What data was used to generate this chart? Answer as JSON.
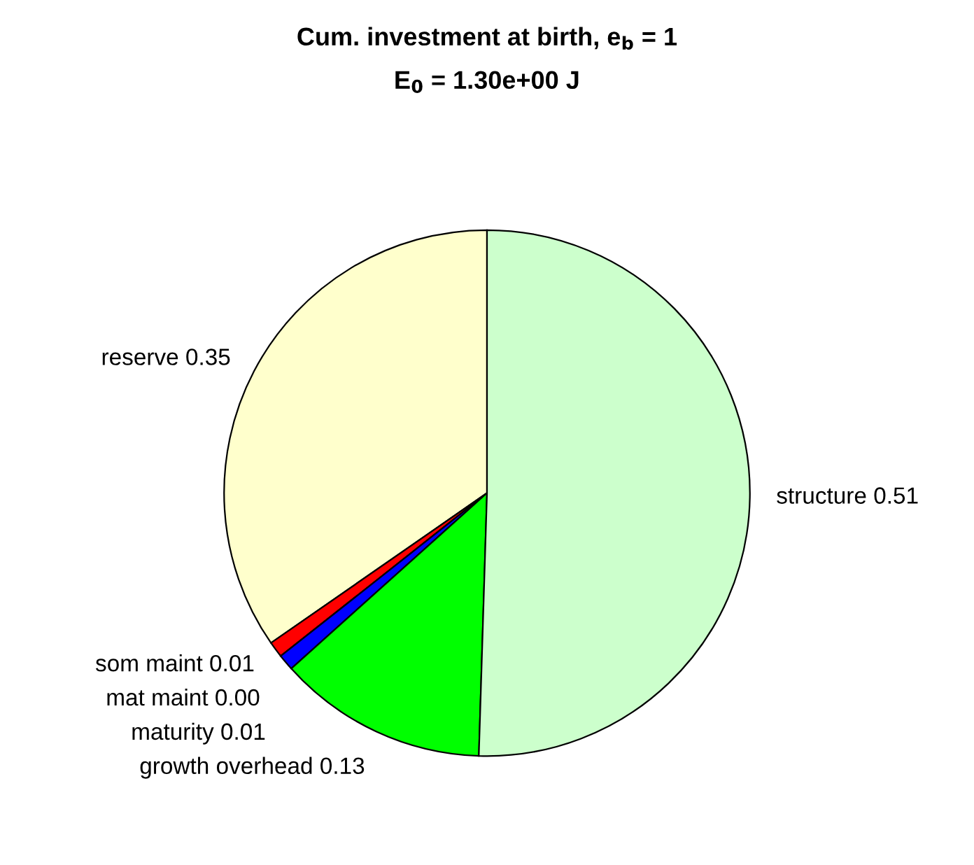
{
  "chart_data": {
    "type": "pie",
    "title": "Cum. investment at birth, e$_{b}$ = 1",
    "subtitle": "E$_{0}$ = 1.30e+00 J",
    "categories": [
      "reserve",
      "som maint",
      "mat maint",
      "maturity",
      "growth overhead",
      "structure"
    ],
    "values": [
      0.35,
      0.01,
      0.0,
      0.01,
      0.13,
      0.51
    ],
    "value_labels": [
      "0.35",
      "0.01",
      "0.00",
      "0.01",
      "0.13",
      "0.51"
    ],
    "colors": [
      "#ffffcc",
      "#ff0000",
      "#ffffff",
      "#0000ff",
      "#00ff00",
      "#ccffcc"
    ]
  }
}
